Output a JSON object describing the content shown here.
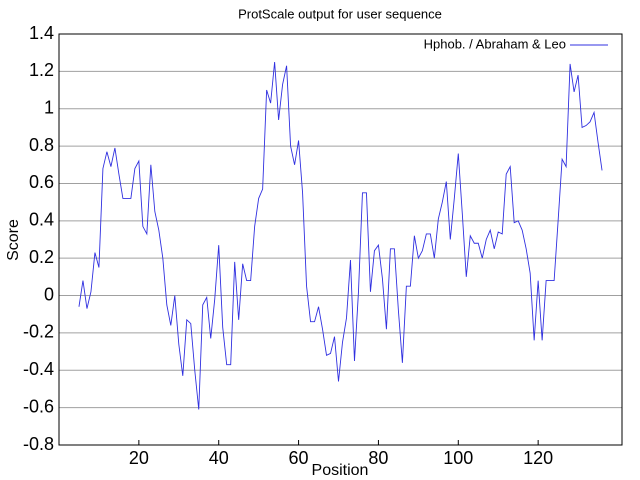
{
  "chart_data": {
    "type": "line",
    "title": "ProtScale output for user sequence",
    "x_label": "Position",
    "y_label": "Score",
    "xlim": [
      0,
      141
    ],
    "xticks": [
      20,
      40,
      60,
      80,
      100,
      120
    ],
    "ylim": [
      -0.8,
      1.4
    ],
    "yticks": [
      -0.8,
      -0.6,
      -0.4,
      -0.2,
      0,
      0.2,
      0.4,
      0.6,
      0.8,
      1,
      1.2,
      1.4
    ],
    "grid": true,
    "legend": "top-right",
    "x": [
      5,
      6,
      7,
      8,
      9,
      10,
      11,
      12,
      13,
      14,
      15,
      16,
      17,
      18,
      19,
      20,
      21,
      22,
      23,
      24,
      25,
      26,
      27,
      28,
      29,
      30,
      31,
      32,
      33,
      34,
      35,
      36,
      37,
      38,
      39,
      40,
      41,
      42,
      43,
      44,
      45,
      46,
      47,
      48,
      49,
      50,
      51,
      52,
      53,
      54,
      55,
      56,
      57,
      58,
      59,
      60,
      61,
      62,
      63,
      64,
      65,
      66,
      67,
      68,
      69,
      70,
      71,
      72,
      73,
      74,
      75,
      76,
      77,
      78,
      79,
      80,
      81,
      82,
      83,
      84,
      85,
      86,
      87,
      88,
      89,
      90,
      91,
      92,
      93,
      94,
      95,
      96,
      97,
      98,
      99,
      100,
      101,
      102,
      103,
      104,
      105,
      106,
      107,
      108,
      109,
      110,
      111,
      112,
      113,
      114,
      115,
      116,
      117,
      118,
      119,
      120,
      121,
      122,
      123,
      124,
      125,
      126,
      127,
      128,
      129,
      130,
      131,
      132,
      133,
      134,
      135,
      136
    ],
    "series": [
      {
        "name": "Hphob. / Abraham & Leo",
        "color": "#3030e0",
        "values": [
          -0.06,
          0.08,
          -0.07,
          0.02,
          0.23,
          0.15,
          0.68,
          0.77,
          0.69,
          0.79,
          0.65,
          0.52,
          0.52,
          0.52,
          0.68,
          0.72,
          0.37,
          0.33,
          0.7,
          0.45,
          0.35,
          0.2,
          -0.05,
          -0.16,
          0.0,
          -0.26,
          -0.43,
          -0.13,
          -0.15,
          -0.4,
          -0.61,
          -0.05,
          -0.01,
          -0.23,
          -0.02,
          0.27,
          -0.17,
          -0.37,
          -0.37,
          0.18,
          -0.13,
          0.17,
          0.08,
          0.08,
          0.37,
          0.52,
          0.57,
          1.1,
          1.03,
          1.25,
          0.94,
          1.13,
          1.23,
          0.8,
          0.7,
          0.83,
          0.55,
          0.05,
          -0.14,
          -0.14,
          -0.06,
          -0.18,
          -0.32,
          -0.31,
          -0.22,
          -0.46,
          -0.25,
          -0.12,
          0.19,
          -0.35,
          0.02,
          0.55,
          0.55,
          0.02,
          0.24,
          0.27,
          0.09,
          -0.18,
          0.25,
          0.25,
          -0.08,
          -0.36,
          0.05,
          0.05,
          0.32,
          0.2,
          0.24,
          0.33,
          0.33,
          0.2,
          0.41,
          0.5,
          0.61,
          0.3,
          0.52,
          0.76,
          0.44,
          0.1,
          0.32,
          0.28,
          0.28,
          0.2,
          0.3,
          0.35,
          0.25,
          0.34,
          0.33,
          0.65,
          0.69,
          0.39,
          0.4,
          0.35,
          0.25,
          0.12,
          -0.24,
          0.08,
          -0.24,
          0.08,
          0.08,
          0.08,
          0.4,
          0.73,
          0.69,
          1.24,
          1.09,
          1.18,
          0.9,
          0.91,
          0.93,
          0.98,
          0.82,
          0.67
        ]
      }
    ]
  }
}
